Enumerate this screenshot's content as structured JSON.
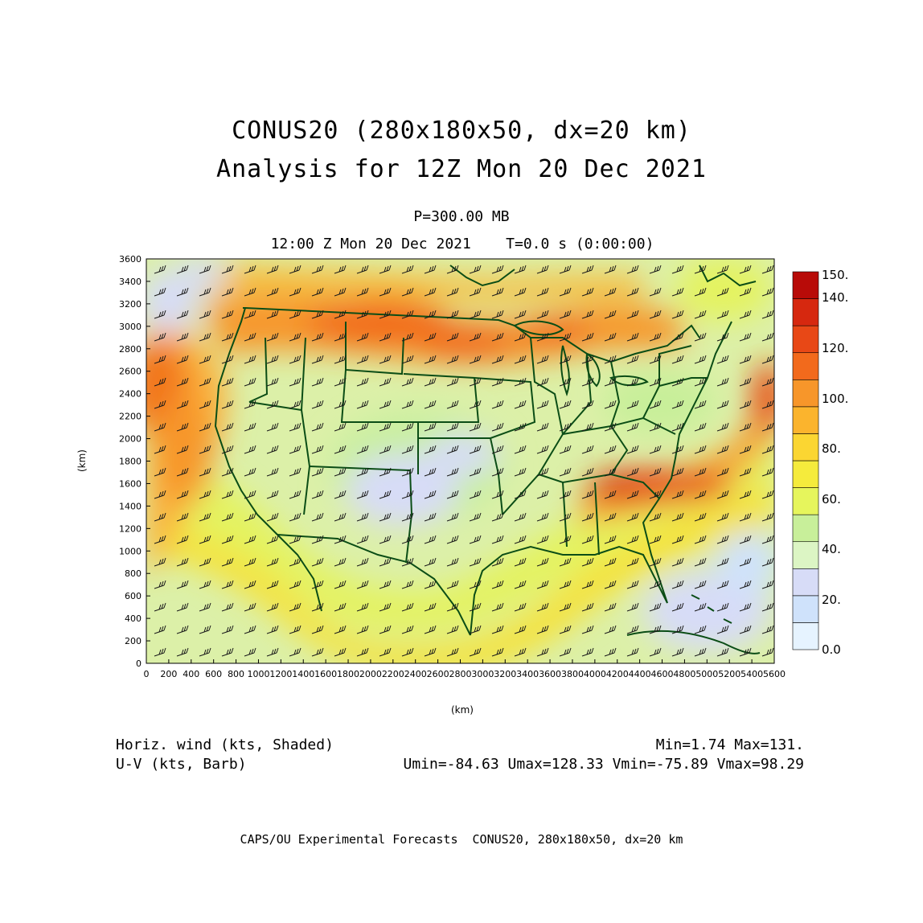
{
  "title": {
    "line1": "CONUS20 (280x180x50, dx=20 km)",
    "line2": "Analysis for 12Z Mon 20 Dec 2021"
  },
  "subtitle": {
    "level": "P=300.00 MB",
    "time": "12:00 Z Mon 20 Dec 2021    T=0.0 s (0:00:00)"
  },
  "axes": {
    "x_label": "(km)",
    "y_label": "(km)",
    "x_ticks": [
      "0",
      "200",
      "400",
      "600",
      "800",
      "1000",
      "1200",
      "1400",
      "1600",
      "1800",
      "2000",
      "2200",
      "2400",
      "2600",
      "2800",
      "3000",
      "3200",
      "3400",
      "3600",
      "3800",
      "4000",
      "4200",
      "4400",
      "4600",
      "4800",
      "5000",
      "5200",
      "5400",
      "5600"
    ],
    "y_ticks": [
      "0",
      "200",
      "400",
      "600",
      "800",
      "1000",
      "1200",
      "1400",
      "1600",
      "1800",
      "2000",
      "2200",
      "2400",
      "2600",
      "2800",
      "3000",
      "3200",
      "3400",
      "3600"
    ],
    "x_range_km": [
      0,
      5600
    ],
    "y_range_km": [
      0,
      3600
    ]
  },
  "colorbar": {
    "labels": [
      "0.0",
      "20.",
      "40.",
      "60.",
      "80.",
      "100.",
      "120.",
      "140.",
      "150."
    ],
    "colors": [
      "#e6f3ff",
      "#cfe2fb",
      "#d7dcf7",
      "#dcf5c4",
      "#c8ef9a",
      "#e6f55c",
      "#f5eb3c",
      "#fbd632",
      "#fbb42d",
      "#f7962a",
      "#f26a1c",
      "#e84816",
      "#d6280f",
      "#b80b08"
    ]
  },
  "legend": {
    "shaded": "Horiz. wind (kts, Shaded)",
    "barb": "U-V (kts, Barb)",
    "minmax": "Min=1.74 Max=131.",
    "uv_stats": "Umin=-84.63 Umax=128.33 Vmin=-75.89 Vmax=98.29"
  },
  "credit": "CAPS/OU Experimental Forecasts  CONUS20, 280x180x50, dx=20 km",
  "map": {
    "field": "300 mb horizontal wind speed",
    "overlay": "state-boundaries-green",
    "colors": {
      "border": "#0b4d16",
      "barb": "#1a1a1a"
    }
  }
}
